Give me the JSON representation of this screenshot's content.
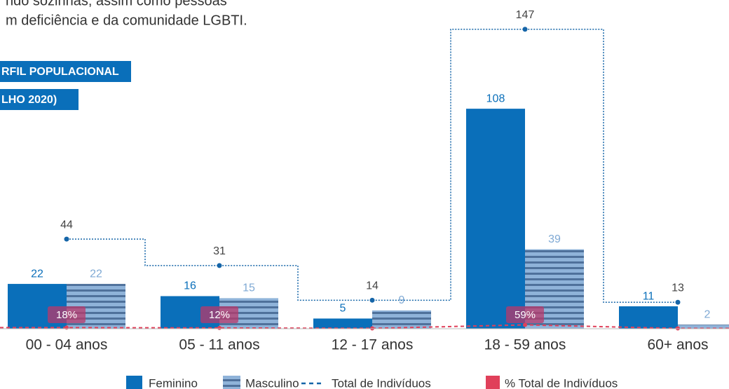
{
  "intro_lines": [
    "ndo sozinhas, assim como pessoas",
    "m deficiência e da comunidade LGBTI."
  ],
  "chart_data": {
    "type": "bar",
    "title_lines": [
      "RFIL POPULACIONAL",
      "LHO 2020)"
    ],
    "categories": [
      "00 - 04 anos",
      "05 - 11 anos",
      "12 - 17 anos",
      "18 - 59 anos",
      "60+ anos"
    ],
    "ylim": [
      0,
      160
    ],
    "y2lim": [
      0,
      5000
    ],
    "series": [
      {
        "name": "Feminino",
        "color": "#0a6fba",
        "values": [
          22,
          16,
          5,
          108,
          11
        ]
      },
      {
        "name": "Masculino",
        "color": "#7fa9d4",
        "values": [
          22,
          15,
          9,
          39,
          2
        ]
      },
      {
        "name": "Total de Indivíduos",
        "type": "line",
        "color": "#1565a8",
        "values": [
          44,
          31,
          14,
          147,
          13
        ]
      },
      {
        "name": "% Total de Indivíduos",
        "type": "line",
        "axis": "y2",
        "color": "#e0405a",
        "values": [
          18,
          12,
          6,
          59,
          5
        ],
        "value_labels": [
          "18%",
          "12%",
          null,
          "59%",
          null
        ]
      }
    ]
  }
}
